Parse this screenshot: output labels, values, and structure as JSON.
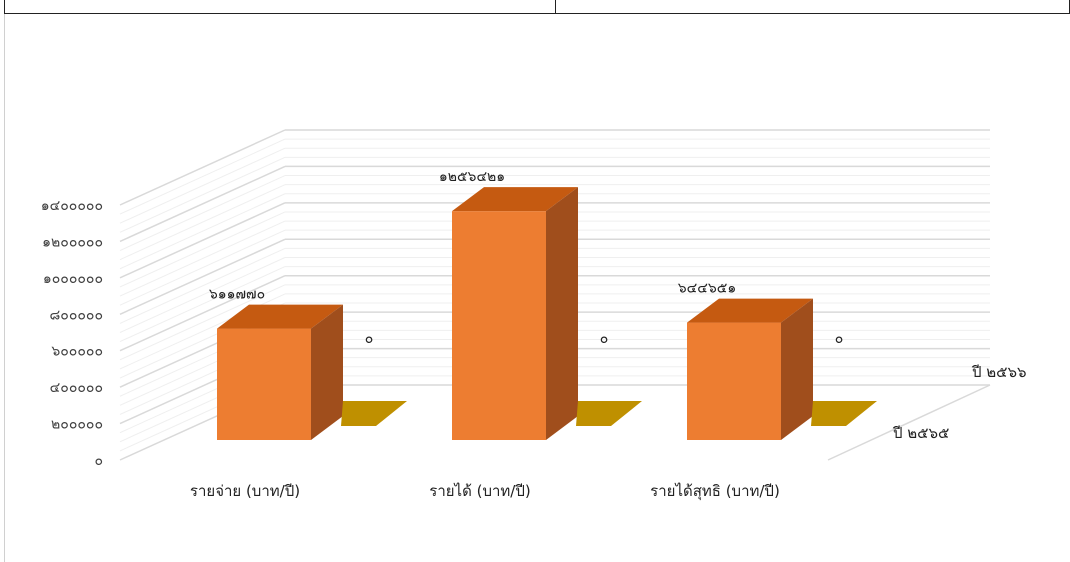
{
  "chart_data": {
    "type": "bar",
    "title": "",
    "categories": [
      "รายจ่าย (บาท/ปี)",
      "รายได้ (บาท/ปี)",
      "รายได้สุทธิ (บาท/ปี)"
    ],
    "series": [
      {
        "name": "ปี ๒๕๖๕",
        "values": [
          611770,
          1256421,
          644651
        ],
        "value_labels": [
          "๖๑๑๗๗๐",
          "๑๒๕๖๔๒๑",
          "๖๔๔๖๕๑"
        ],
        "color": "#ED7D31"
      },
      {
        "name": "ปี ๒๕๖๖",
        "values": [
          0,
          0,
          0
        ],
        "value_labels": [
          "๐",
          "๐",
          "๐"
        ],
        "color": "#BF9000"
      }
    ],
    "yticks": [
      0,
      200000,
      400000,
      600000,
      800000,
      1000000,
      1200000,
      1400000
    ],
    "ytick_labels": [
      "๐",
      "๒๐๐๐๐๐",
      "๔๐๐๐๐๐",
      "๖๐๐๐๐๐",
      "๘๐๐๐๐๐",
      "๑๐๐๐๐๐๐",
      "๑๒๐๐๐๐๐",
      "๑๔๐๐๐๐๐"
    ],
    "ylim": [
      0,
      1400000
    ],
    "grid": true,
    "three_d": true
  }
}
